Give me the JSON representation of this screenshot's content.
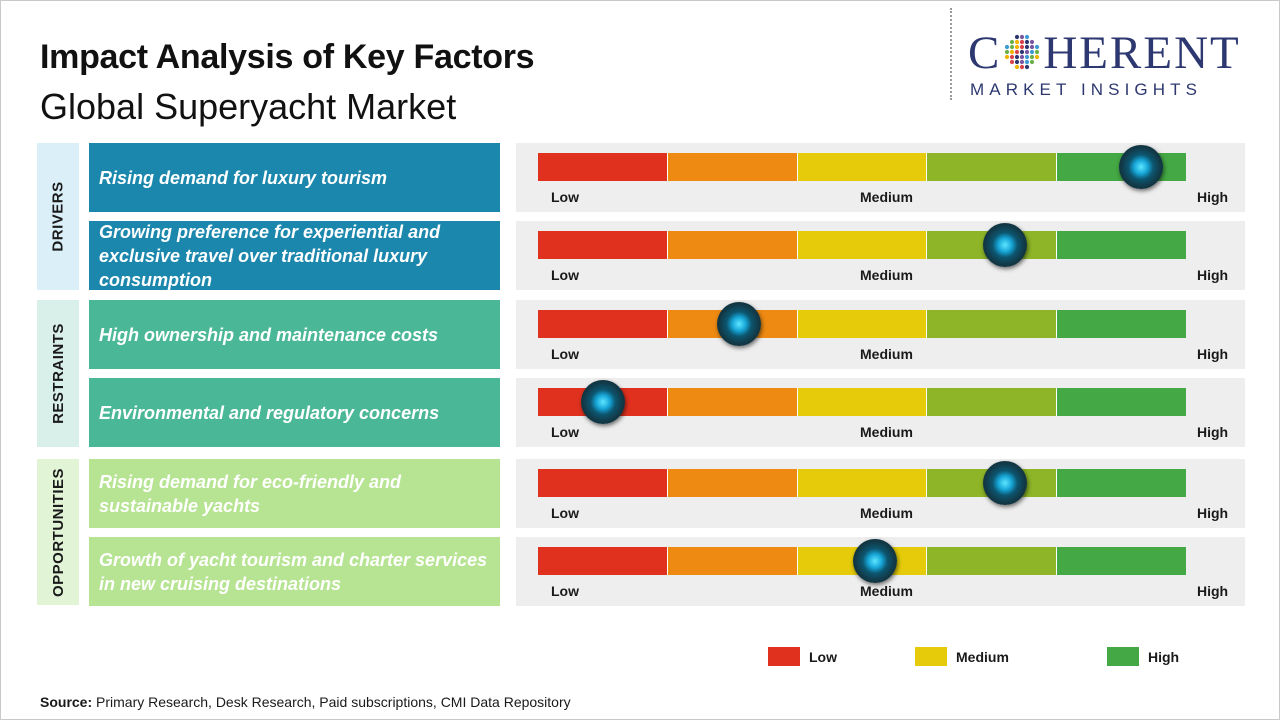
{
  "title": "Impact Analysis of Key Factors",
  "subtitle": "Global Superyacht Market",
  "logo": {
    "main": "COHERENT",
    "sub": "MARKET INSIGHTS",
    "color": "#2d3870"
  },
  "scale_labels": {
    "low": "Low",
    "medium": "Medium",
    "high": "High"
  },
  "scale_colors": [
    "#e0311f",
    "#ee8a12",
    "#e5cb0a",
    "#8db527",
    "#44a844"
  ],
  "categories": [
    {
      "name": "DRIVERS",
      "bg": "#dbeff8",
      "factor_color": "#1b87ad"
    },
    {
      "name": "RESTRAINTS",
      "bg": "#d9efe9",
      "factor_color": "#4ab896"
    },
    {
      "name": "OPPORTUNITIES",
      "bg": "#e2f4d6",
      "factor_color": "#b7e492"
    }
  ],
  "chart_data": {
    "type": "table",
    "title": "Impact Analysis of Key Factors",
    "subtitle": "Global Superyacht Market",
    "scale": [
      "Low",
      "Medium",
      "High"
    ],
    "rows": [
      {
        "category": "DRIVERS",
        "factor": "Rising demand for luxury tourism",
        "impact": 0.93
      },
      {
        "category": "DRIVERS",
        "factor": "Growing preference for experiential and exclusive travel over traditional luxury consumption",
        "impact": 0.72
      },
      {
        "category": "RESTRAINTS",
        "factor": "High ownership and maintenance costs",
        "impact": 0.31
      },
      {
        "category": "RESTRAINTS",
        "factor": "Environmental and regulatory concerns",
        "impact": 0.1
      },
      {
        "category": "OPPORTUNITIES",
        "factor": "Rising demand for eco-friendly and sustainable yachts",
        "impact": 0.72
      },
      {
        "category": "OPPORTUNITIES",
        "factor": "Growth of yacht tourism and charter services in new cruising destinations",
        "impact": 0.52
      }
    ]
  },
  "legend": [
    {
      "label": "Low",
      "color": "#e0311f"
    },
    {
      "label": "Medium",
      "color": "#e5cb0a"
    },
    {
      "label": "High",
      "color": "#44a844"
    }
  ],
  "source": {
    "label": "Source:",
    "text": "Primary Research, Desk Research, Paid subscriptions, CMI Data Repository"
  }
}
